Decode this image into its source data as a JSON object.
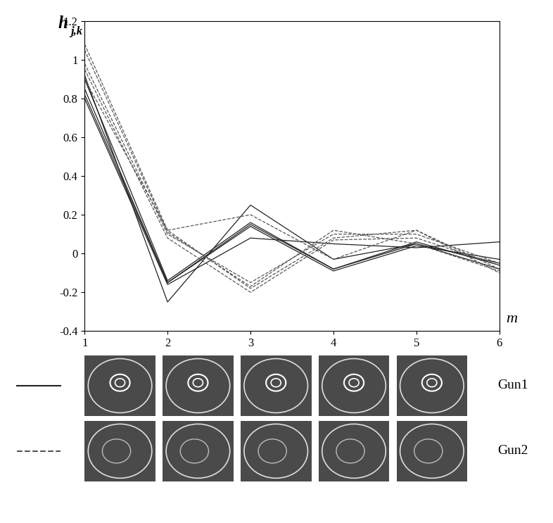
{
  "chart_data": {
    "type": "line",
    "y_label": "h",
    "y_label_subscript": "j,k",
    "x_label": "m",
    "x": [
      1,
      2,
      3,
      4,
      5,
      6
    ],
    "xlim": [
      1,
      6
    ],
    "xticks": [
      1,
      2,
      3,
      4,
      5,
      6
    ],
    "ylim": [
      -0.4,
      1.2
    ],
    "yticks": [
      -0.4,
      -0.2,
      0,
      0.2,
      0.4,
      0.6,
      0.8,
      1,
      1.2
    ],
    "grid": false,
    "groups": [
      {
        "name": "Gun1",
        "line_style": "solid",
        "color": "#222222",
        "series": [
          [
            0.82,
            -0.15,
            0.15,
            -0.08,
            0.05,
            -0.05
          ],
          [
            0.85,
            -0.15,
            0.14,
            -0.09,
            0.04,
            -0.03
          ],
          [
            0.9,
            -0.14,
            0.16,
            -0.08,
            0.06,
            -0.06
          ],
          [
            0.92,
            -0.25,
            0.25,
            -0.03,
            0.05,
            -0.08
          ],
          [
            0.8,
            -0.16,
            0.08,
            0.05,
            0.03,
            0.06
          ]
        ]
      },
      {
        "name": "Gun2",
        "line_style": "dashed",
        "color": "#555555",
        "series": [
          [
            1.08,
            0.12,
            -0.18,
            0.08,
            0.12,
            -0.08
          ],
          [
            0.98,
            0.1,
            -0.15,
            0.1,
            0.1,
            -0.05
          ],
          [
            0.95,
            0.08,
            -0.2,
            0.07,
            0.08,
            -0.06
          ],
          [
            1.05,
            0.11,
            -0.17,
            0.12,
            0.05,
            -0.09
          ],
          [
            0.9,
            0.12,
            0.2,
            -0.03,
            0.12,
            -0.1
          ]
        ]
      }
    ]
  }
}
